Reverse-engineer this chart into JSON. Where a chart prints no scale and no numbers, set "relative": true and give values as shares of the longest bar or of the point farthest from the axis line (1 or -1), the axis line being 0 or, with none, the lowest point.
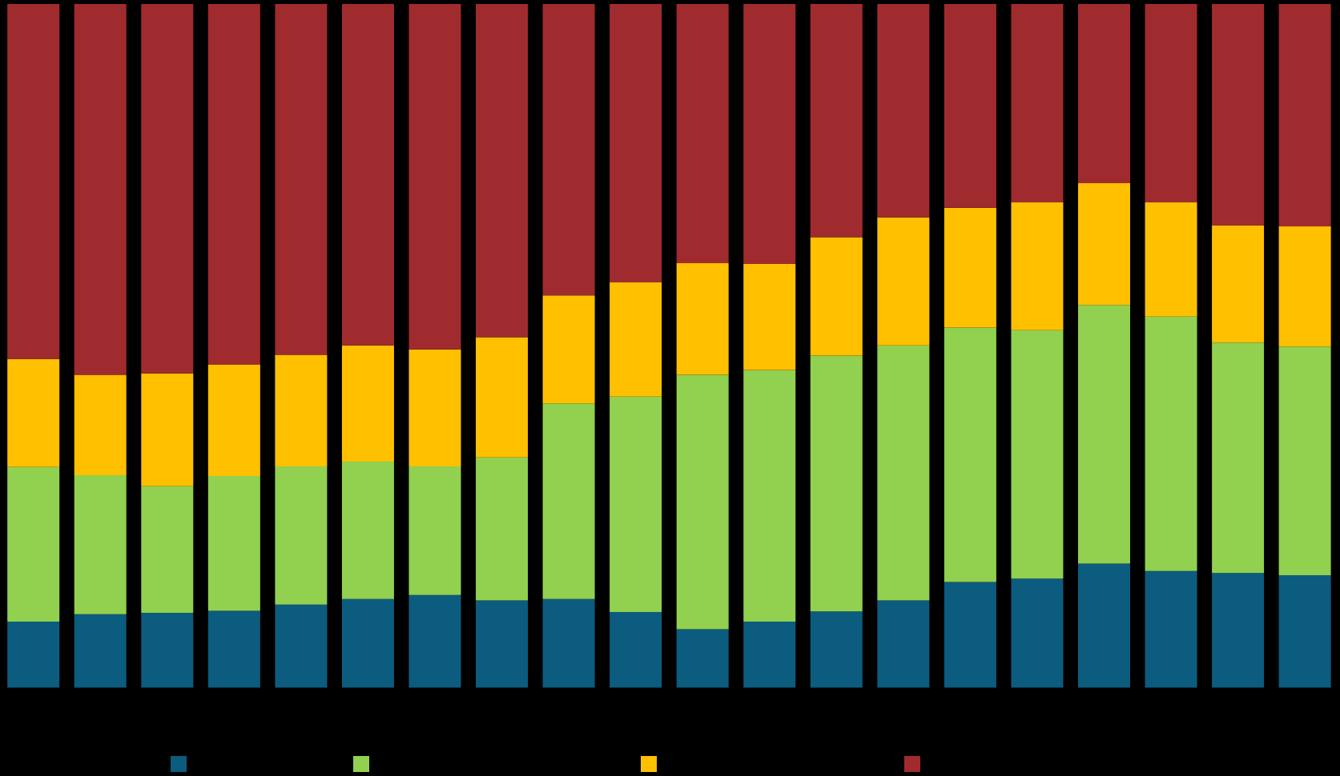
{
  "chart_data": {
    "type": "bar",
    "stacked": true,
    "relative": true,
    "categories": [
      null,
      null,
      null,
      null,
      null,
      null,
      null,
      null,
      null,
      null,
      null,
      null,
      null,
      null,
      null,
      null,
      null,
      null,
      null,
      null
    ],
    "series": [
      {
        "color": "#0b5c7f",
        "values": [
          0.097,
          0.108,
          0.11,
          0.113,
          0.122,
          0.13,
          0.136,
          0.128,
          0.13,
          0.111,
          0.086,
          0.097,
          0.112,
          0.128,
          0.155,
          0.16,
          0.182,
          0.171,
          0.168,
          0.165
        ]
      },
      {
        "color": "#92d050",
        "values": [
          0.226,
          0.203,
          0.185,
          0.197,
          0.202,
          0.201,
          0.188,
          0.209,
          0.286,
          0.315,
          0.372,
          0.368,
          0.374,
          0.373,
          0.372,
          0.363,
          0.378,
          0.372,
          0.337,
          0.334
        ]
      },
      {
        "color": "#ffc000",
        "values": [
          0.158,
          0.147,
          0.165,
          0.163,
          0.163,
          0.17,
          0.171,
          0.176,
          0.158,
          0.167,
          0.163,
          0.155,
          0.173,
          0.187,
          0.175,
          0.187,
          0.178,
          0.167,
          0.171,
          0.176
        ]
      },
      {
        "color": "#a02b2f",
        "values": [
          0.519,
          0.542,
          0.54,
          0.527,
          0.513,
          0.499,
          0.505,
          0.487,
          0.426,
          0.407,
          0.379,
          0.38,
          0.341,
          0.312,
          0.298,
          0.29,
          0.262,
          0.29,
          0.324,
          0.325
        ]
      }
    ]
  }
}
